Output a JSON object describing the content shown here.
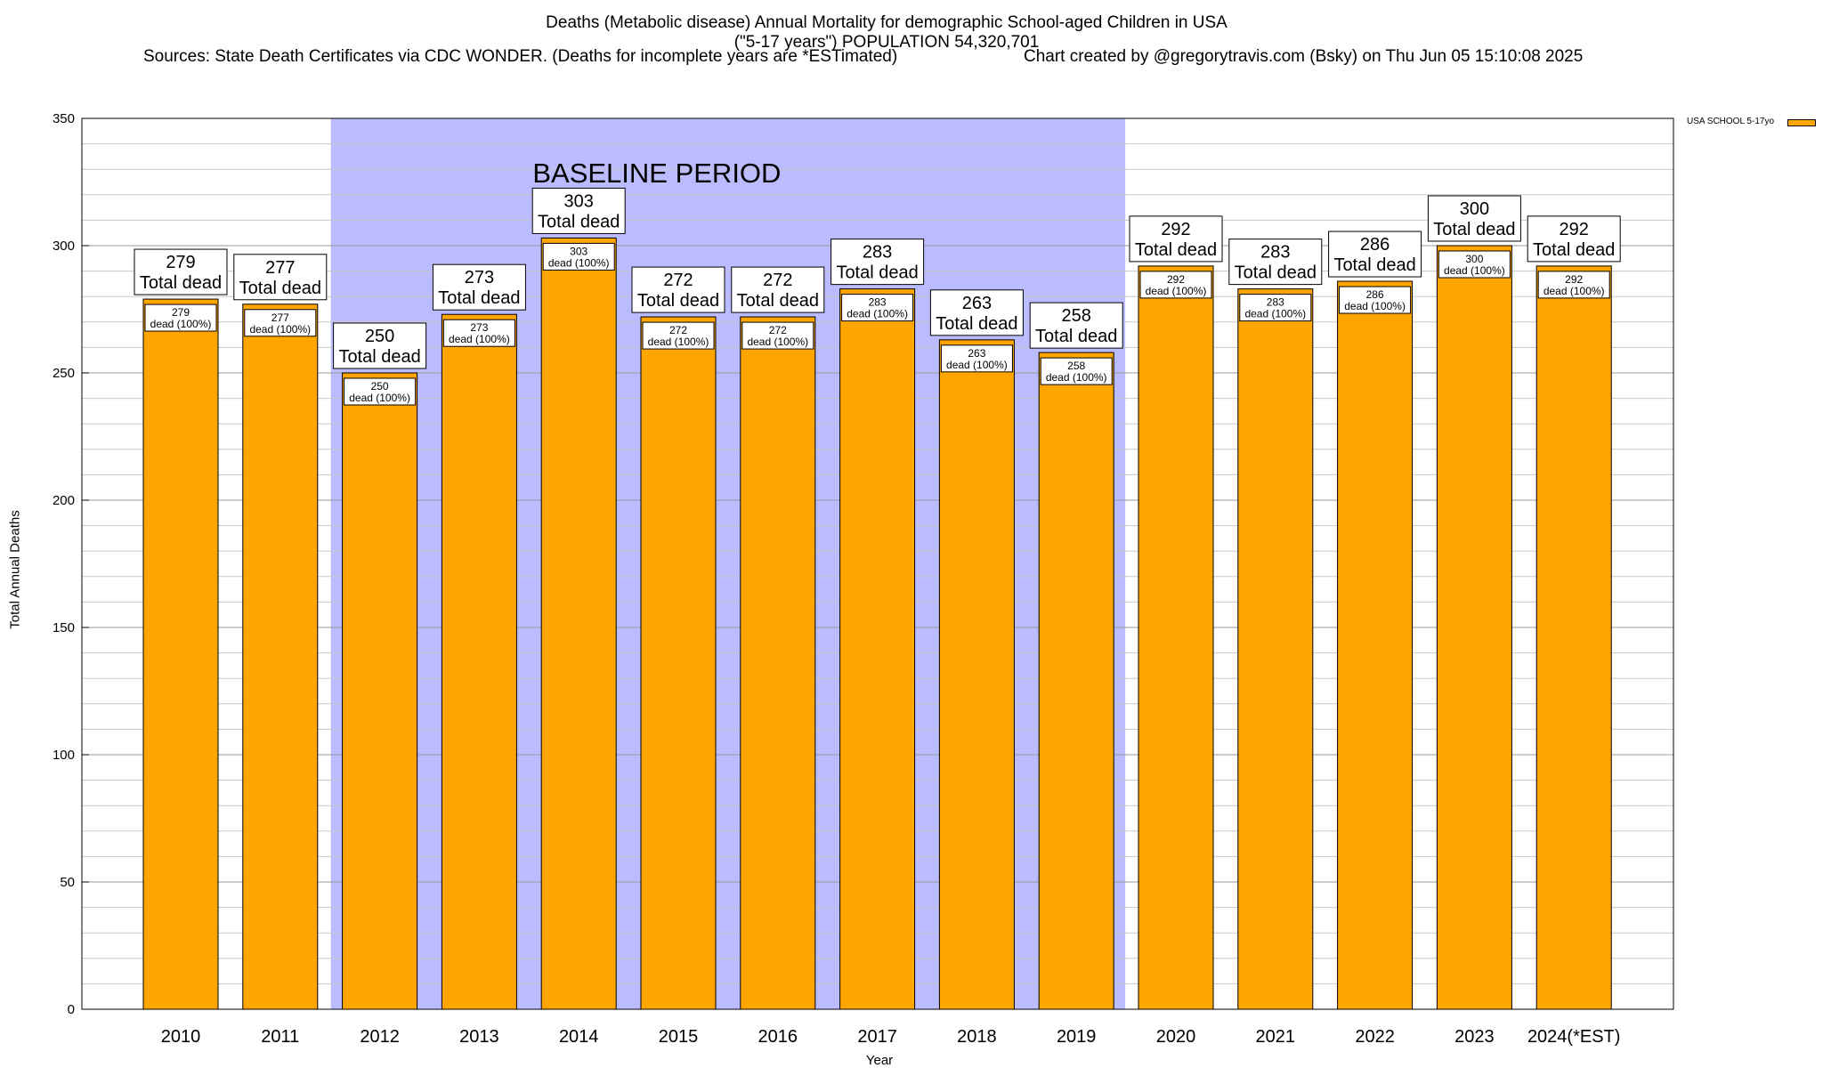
{
  "chart_data": {
    "type": "bar",
    "title": "Deaths (Metabolic disease) Annual Mortality for demographic School-aged Children in USA",
    "subtitle": "(\"5-17 years\") POPULATION 54,320,701",
    "sources": "Sources: State Death Certificates via CDC WONDER. (Deaths for incomplete years are *ESTimated)",
    "credit": "Chart created by @gregorytravis.com (Bsky) on Thu Jun 05 15:10:08 2025",
    "xlabel": "Year",
    "ylabel": "Total Annual Deaths",
    "ylim": [
      0,
      350
    ],
    "yticks": [
      "0",
      "50",
      "100",
      "150",
      "200",
      "250",
      "300",
      "350"
    ],
    "categories": [
      "2010",
      "2011",
      "2012",
      "2013",
      "2014",
      "2015",
      "2016",
      "2017",
      "2018",
      "2019",
      "2020",
      "2021",
      "2022",
      "2023",
      "2024(*EST)"
    ],
    "series": [
      {
        "name": "USA SCHOOL 5-17yo",
        "color": "#FFA500",
        "values": [
          279,
          277,
          250,
          273,
          303,
          272,
          272,
          283,
          263,
          258,
          292,
          283,
          286,
          300,
          292
        ]
      }
    ],
    "top_labels": [
      "279",
      "277",
      "250",
      "273",
      "303",
      "272",
      "272",
      "283",
      "263",
      "258",
      "292",
      "283",
      "286",
      "300",
      "292"
    ],
    "top_label_suffix": "Total dead",
    "inner_labels": [
      "279",
      "277",
      "250",
      "273",
      "303",
      "272",
      "272",
      "283",
      "263",
      "258",
      "292",
      "283",
      "286",
      "300",
      "292"
    ],
    "inner_label_suffix": "dead (100%)",
    "annotation": {
      "text": "BASELINE PERIOD",
      "from_category": "2012",
      "to_category": "2019",
      "color": "#BBBBFF"
    },
    "grid": true,
    "legend_position": "top-right"
  }
}
